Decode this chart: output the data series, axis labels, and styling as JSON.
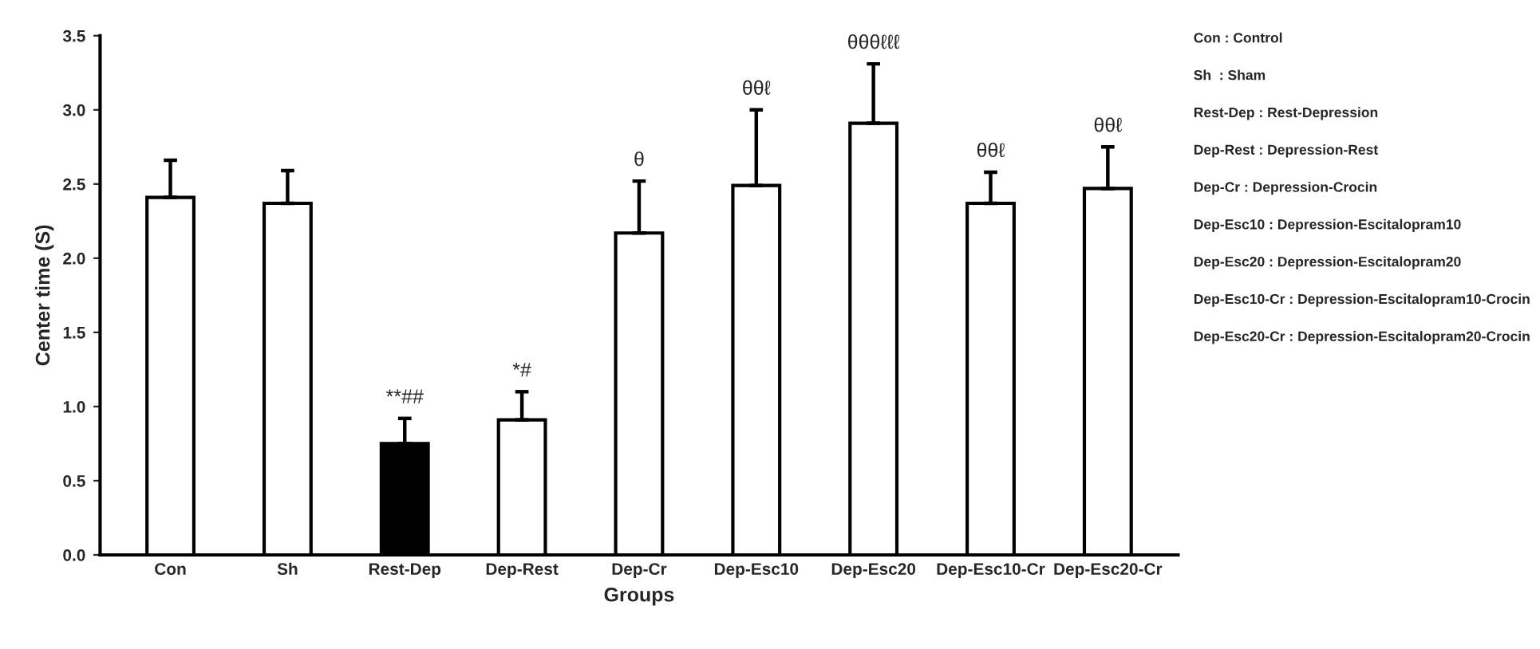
{
  "chart_data": {
    "type": "bar",
    "xlabel": "Groups",
    "ylabel": "Center time (S)",
    "categories": [
      "Con",
      "Sh",
      "Rest-Dep",
      "Dep-Rest",
      "Dep-Cr",
      "Dep-Esc10",
      "Dep-Esc20",
      "Dep-Esc10-Cr",
      "Dep-Esc20-Cr"
    ],
    "values": [
      2.41,
      2.37,
      0.75,
      0.91,
      2.17,
      2.49,
      2.91,
      2.37,
      2.47
    ],
    "errors": [
      [
        2.41,
        2.66
      ],
      [
        2.37,
        2.59
      ],
      [
        0.75,
        0.92
      ],
      [
        0.91,
        1.1
      ],
      [
        2.17,
        2.52
      ],
      [
        2.49,
        3.0
      ],
      [
        2.91,
        3.31
      ],
      [
        2.37,
        2.58
      ],
      [
        2.47,
        2.75
      ]
    ],
    "colors": [
      "#ffffff",
      "#ffffff",
      "#000000",
      "#ffffff",
      "#ffffff",
      "#ffffff",
      "#ffffff",
      "#ffffff",
      "#ffffff"
    ],
    "ylim": [
      0,
      3.5
    ],
    "yticks": [
      {
        "value": 0,
        "label": "0.0"
      },
      {
        "value": 0.5,
        "label": "0.5"
      },
      {
        "value": 1,
        "label": "1.0"
      },
      {
        "value": 1.5,
        "label": "1.5"
      },
      {
        "value": 2,
        "label": "2.0"
      },
      {
        "value": 2.5,
        "label": "2.5"
      },
      {
        "value": 3,
        "label": "3.0"
      },
      {
        "value": 3.5,
        "label": "3.5"
      }
    ],
    "grid": false,
    "legend": false,
    "annotations": [
      {
        "text": "**##",
        "x": "Rest-Dep",
        "y": 0.92
      },
      {
        "text": "*#",
        "x": "Dep-Rest",
        "y": 1.1
      },
      {
        "text": "θ",
        "x": "Dep-Cr",
        "y": 2.52
      },
      {
        "text": "θθℓ",
        "x": "Dep-Esc10",
        "y": 3.0
      },
      {
        "text": "θθθℓℓℓ",
        "x": "Dep-Esc20",
        "y": 3.31
      },
      {
        "text": "θθℓ",
        "x": "Dep-Esc10-Cr",
        "y": 2.58
      },
      {
        "text": "θθℓ",
        "x": "Dep-Esc20-Cr",
        "y": 2.75
      },
      "Con : Control",
      "Sh  : Sham",
      "Rest-Dep : Rest-Depression",
      "Dep-Rest : Depression-Rest",
      "Dep-Cr : Depression-Crocin",
      "Dep-Esc10 : Depression-Escitalopram10",
      "Dep-Esc20 : Depression-Escitalopram20",
      "Dep-Esc10-Cr : Depression-Escitalopram10-Crocin",
      "Dep-Esc20-Cr : Depression-Escitalopram20-Crocin"
    ]
  }
}
